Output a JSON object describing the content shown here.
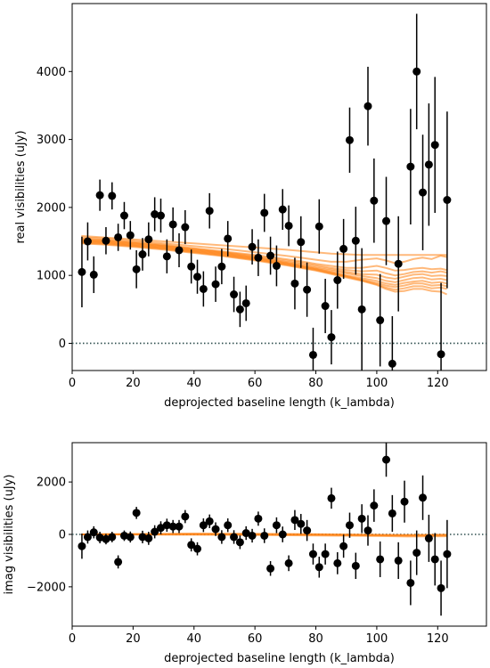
{
  "chart_data": [
    {
      "type": "scatter",
      "name": "real",
      "xlabel": "deprojected baseline length (k_lambda)",
      "ylabel": "real visibilities (uJy)",
      "xlim": [
        0,
        136
      ],
      "ylim": [
        -400,
        5000
      ],
      "xticks": [
        0,
        20,
        40,
        60,
        80,
        100,
        120
      ],
      "yticks": [
        0,
        1000,
        2000,
        3000,
        4000
      ],
      "grid": false,
      "zero_line": {
        "y": 0,
        "style": "dotted",
        "color": "#2f4f4f"
      },
      "colors": {
        "points": "#000000",
        "model": "#ff7f0e"
      },
      "points": [
        {
          "x": 3.2,
          "y": 1050,
          "err": 520
        },
        {
          "x": 5.1,
          "y": 1500,
          "err": 280
        },
        {
          "x": 7.1,
          "y": 1010,
          "err": 270
        },
        {
          "x": 9.1,
          "y": 2180,
          "err": 230
        },
        {
          "x": 11.1,
          "y": 1510,
          "err": 200
        },
        {
          "x": 13.1,
          "y": 2170,
          "err": 200
        },
        {
          "x": 15.1,
          "y": 1560,
          "err": 200
        },
        {
          "x": 17.1,
          "y": 1880,
          "err": 200
        },
        {
          "x": 19.1,
          "y": 1590,
          "err": 210
        },
        {
          "x": 21.1,
          "y": 1090,
          "err": 280
        },
        {
          "x": 23.1,
          "y": 1310,
          "err": 240
        },
        {
          "x": 25.1,
          "y": 1530,
          "err": 250
        },
        {
          "x": 27.1,
          "y": 1900,
          "err": 250
        },
        {
          "x": 29.1,
          "y": 1880,
          "err": 250
        },
        {
          "x": 31.1,
          "y": 1280,
          "err": 250
        },
        {
          "x": 33.1,
          "y": 1750,
          "err": 250
        },
        {
          "x": 35.1,
          "y": 1370,
          "err": 250
        },
        {
          "x": 37.1,
          "y": 1710,
          "err": 250
        },
        {
          "x": 39.1,
          "y": 1130,
          "err": 250
        },
        {
          "x": 41.1,
          "y": 980,
          "err": 250
        },
        {
          "x": 43.1,
          "y": 800,
          "err": 260
        },
        {
          "x": 45.1,
          "y": 1950,
          "err": 260
        },
        {
          "x": 47.1,
          "y": 870,
          "err": 260
        },
        {
          "x": 49.1,
          "y": 1130,
          "err": 260
        },
        {
          "x": 51.1,
          "y": 1540,
          "err": 260
        },
        {
          "x": 53.1,
          "y": 720,
          "err": 260
        },
        {
          "x": 55.1,
          "y": 500,
          "err": 260
        },
        {
          "x": 57.1,
          "y": 590,
          "err": 260
        },
        {
          "x": 59.1,
          "y": 1420,
          "err": 260
        },
        {
          "x": 61.1,
          "y": 1260,
          "err": 270
        },
        {
          "x": 63.1,
          "y": 1920,
          "err": 280
        },
        {
          "x": 65.1,
          "y": 1290,
          "err": 280
        },
        {
          "x": 67.1,
          "y": 1140,
          "err": 300
        },
        {
          "x": 69.1,
          "y": 1970,
          "err": 300
        },
        {
          "x": 71.1,
          "y": 1730,
          "err": 300
        },
        {
          "x": 73.1,
          "y": 880,
          "err": 380
        },
        {
          "x": 75.1,
          "y": 1490,
          "err": 380
        },
        {
          "x": 77.1,
          "y": 790,
          "err": 400
        },
        {
          "x": 79.1,
          "y": -170,
          "err": 400
        },
        {
          "x": 81.1,
          "y": 1720,
          "err": 400
        },
        {
          "x": 83.1,
          "y": 550,
          "err": 400
        },
        {
          "x": 85.1,
          "y": 90,
          "err": 400
        },
        {
          "x": 87.1,
          "y": 930,
          "err": 420
        },
        {
          "x": 89.1,
          "y": 1390,
          "err": 440
        },
        {
          "x": 91.1,
          "y": 2990,
          "err": 480
        },
        {
          "x": 93.1,
          "y": 1510,
          "err": 500
        },
        {
          "x": 95.1,
          "y": 500,
          "err": 900
        },
        {
          "x": 97.1,
          "y": 3490,
          "err": 580
        },
        {
          "x": 99.1,
          "y": 2100,
          "err": 620
        },
        {
          "x": 101.1,
          "y": 340,
          "err": 680
        },
        {
          "x": 103.1,
          "y": 1800,
          "err": 650
        },
        {
          "x": 105.1,
          "y": -300,
          "err": 700
        },
        {
          "x": 107.1,
          "y": 1170,
          "err": 700
        },
        {
          "x": 111.1,
          "y": 2600,
          "err": 850
        },
        {
          "x": 113.1,
          "y": 4000,
          "err": 850
        },
        {
          "x": 115.1,
          "y": 2220,
          "err": 850
        },
        {
          "x": 117.1,
          "y": 2630,
          "err": 900
        },
        {
          "x": 119.1,
          "y": 2920,
          "err": 1000
        },
        {
          "x": 121.1,
          "y": -160,
          "err": 1050
        },
        {
          "x": 123.1,
          "y": 2110,
          "err": 1300
        }
      ],
      "model_x": [
        3,
        10,
        20,
        30,
        40,
        50,
        60,
        70,
        75,
        80,
        85,
        90,
        95,
        100,
        103,
        106,
        109,
        112,
        115,
        118,
        121,
        123
      ],
      "model_curves": [
        [
          1580,
          1560,
          1530,
          1500,
          1470,
          1440,
          1410,
          1380,
          1360,
          1340,
          1320,
          1310,
          1300,
          1300,
          1300,
          1300,
          1300,
          1300,
          1300,
          1300,
          1300,
          1300
        ],
        [
          1560,
          1545,
          1510,
          1470,
          1430,
          1390,
          1340,
          1290,
          1260,
          1230,
          1200,
          1200,
          1230,
          1250,
          1220,
          1180,
          1200,
          1240,
          1260,
          1240,
          1290,
          1270
        ],
        [
          1540,
          1525,
          1490,
          1450,
          1400,
          1350,
          1300,
          1240,
          1210,
          1170,
          1140,
          1110,
          1110,
          1140,
          1110,
          1070,
          1080,
          1100,
          1110,
          1090,
          1100,
          1080
        ],
        [
          1530,
          1515,
          1480,
          1440,
          1390,
          1340,
          1285,
          1220,
          1190,
          1150,
          1110,
          1080,
          1060,
          1070,
          1030,
          1000,
          1020,
          1050,
          1060,
          1040,
          1060,
          1040
        ],
        [
          1520,
          1505,
          1470,
          1430,
          1380,
          1330,
          1270,
          1200,
          1170,
          1130,
          1090,
          1050,
          1020,
          1010,
          970,
          950,
          980,
          1010,
          1020,
          990,
          1000,
          990
        ],
        [
          1510,
          1495,
          1460,
          1420,
          1370,
          1320,
          1260,
          1190,
          1150,
          1110,
          1070,
          1030,
          990,
          960,
          920,
          900,
          930,
          960,
          970,
          940,
          950,
          930
        ],
        [
          1500,
          1485,
          1450,
          1410,
          1360,
          1310,
          1250,
          1180,
          1140,
          1100,
          1050,
          1000,
          960,
          920,
          880,
          860,
          890,
          910,
          920,
          890,
          900,
          880
        ],
        [
          1490,
          1475,
          1440,
          1400,
          1350,
          1300,
          1240,
          1170,
          1130,
          1090,
          1040,
          990,
          940,
          890,
          850,
          830,
          850,
          880,
          880,
          850,
          860,
          840
        ],
        [
          1480,
          1465,
          1430,
          1390,
          1340,
          1290,
          1230,
          1160,
          1120,
          1080,
          1030,
          980,
          930,
          870,
          820,
          790,
          810,
          840,
          840,
          810,
          820,
          800
        ],
        [
          1470,
          1455,
          1420,
          1380,
          1330,
          1280,
          1220,
          1150,
          1110,
          1070,
          1020,
          970,
          920,
          860,
          800,
          760,
          770,
          800,
          800,
          770,
          760,
          720
        ]
      ]
    },
    {
      "type": "scatter",
      "name": "imag",
      "xlabel": "deprojected baseline length (k_lambda)",
      "ylabel": "imag visibilities (uJy)",
      "xlim": [
        0,
        136
      ],
      "ylim": [
        -3500,
        3500
      ],
      "xticks": [
        0,
        20,
        40,
        60,
        80,
        100,
        120
      ],
      "yticks": [
        -2000,
        0,
        2000
      ],
      "grid": false,
      "zero_line": {
        "y": 0,
        "style": "dotted",
        "color": "#2f4f4f"
      },
      "colors": {
        "points": "#000000",
        "model": "#ff7f0e"
      },
      "points": [
        {
          "x": 3.2,
          "y": -450,
          "err": 480
        },
        {
          "x": 5.1,
          "y": -100,
          "err": 250
        },
        {
          "x": 7.1,
          "y": 80,
          "err": 230
        },
        {
          "x": 9.1,
          "y": -120,
          "err": 220
        },
        {
          "x": 11.1,
          "y": -180,
          "err": 200
        },
        {
          "x": 13.1,
          "y": -100,
          "err": 200
        },
        {
          "x": 15.1,
          "y": -1050,
          "err": 250
        },
        {
          "x": 17.1,
          "y": -50,
          "err": 200
        },
        {
          "x": 19.1,
          "y": -100,
          "err": 210
        },
        {
          "x": 21.1,
          "y": 820,
          "err": 230
        },
        {
          "x": 23.1,
          "y": -100,
          "err": 240
        },
        {
          "x": 25.1,
          "y": -150,
          "err": 250
        },
        {
          "x": 27.1,
          "y": 100,
          "err": 250
        },
        {
          "x": 29.1,
          "y": 250,
          "err": 250
        },
        {
          "x": 31.1,
          "y": 350,
          "err": 250
        },
        {
          "x": 33.1,
          "y": 300,
          "err": 250
        },
        {
          "x": 35.1,
          "y": 300,
          "err": 250
        },
        {
          "x": 37.1,
          "y": 680,
          "err": 250
        },
        {
          "x": 39.1,
          "y": -400,
          "err": 250
        },
        {
          "x": 41.1,
          "y": -550,
          "err": 250
        },
        {
          "x": 43.1,
          "y": 350,
          "err": 260
        },
        {
          "x": 45.1,
          "y": 500,
          "err": 260
        },
        {
          "x": 47.1,
          "y": 200,
          "err": 260
        },
        {
          "x": 49.1,
          "y": -100,
          "err": 260
        },
        {
          "x": 51.1,
          "y": 350,
          "err": 260
        },
        {
          "x": 53.1,
          "y": -100,
          "err": 260
        },
        {
          "x": 55.1,
          "y": -300,
          "err": 260
        },
        {
          "x": 57.1,
          "y": 50,
          "err": 260
        },
        {
          "x": 59.1,
          "y": -50,
          "err": 260
        },
        {
          "x": 61.1,
          "y": 600,
          "err": 270
        },
        {
          "x": 63.1,
          "y": -50,
          "err": 280
        },
        {
          "x": 65.1,
          "y": -1300,
          "err": 280
        },
        {
          "x": 67.1,
          "y": 350,
          "err": 300
        },
        {
          "x": 69.1,
          "y": 0,
          "err": 300
        },
        {
          "x": 71.1,
          "y": -1100,
          "err": 300
        },
        {
          "x": 73.1,
          "y": 550,
          "err": 380
        },
        {
          "x": 75.1,
          "y": 400,
          "err": 380
        },
        {
          "x": 77.1,
          "y": 150,
          "err": 400
        },
        {
          "x": 79.1,
          "y": -750,
          "err": 400
        },
        {
          "x": 81.1,
          "y": -1250,
          "err": 400
        },
        {
          "x": 83.1,
          "y": -750,
          "err": 400
        },
        {
          "x": 85.1,
          "y": 1380,
          "err": 400
        },
        {
          "x": 87.1,
          "y": -1100,
          "err": 420
        },
        {
          "x": 89.1,
          "y": -450,
          "err": 440
        },
        {
          "x": 91.1,
          "y": 350,
          "err": 480
        },
        {
          "x": 93.1,
          "y": -1200,
          "err": 500
        },
        {
          "x": 95.1,
          "y": 600,
          "err": 550
        },
        {
          "x": 97.1,
          "y": 150,
          "err": 580
        },
        {
          "x": 99.1,
          "y": 1100,
          "err": 620
        },
        {
          "x": 101.1,
          "y": -950,
          "err": 680
        },
        {
          "x": 103.1,
          "y": 2850,
          "err": 650
        },
        {
          "x": 105.1,
          "y": 800,
          "err": 700
        },
        {
          "x": 107.1,
          "y": -1000,
          "err": 700
        },
        {
          "x": 109.1,
          "y": 1250,
          "err": 800
        },
        {
          "x": 111.1,
          "y": -1850,
          "err": 850
        },
        {
          "x": 113.1,
          "y": -700,
          "err": 850
        },
        {
          "x": 115.1,
          "y": 1400,
          "err": 850
        },
        {
          "x": 117.1,
          "y": -150,
          "err": 900
        },
        {
          "x": 119.1,
          "y": -950,
          "err": 1000
        },
        {
          "x": 121.1,
          "y": -2050,
          "err": 1050
        },
        {
          "x": 123.1,
          "y": -750,
          "err": 1300
        }
      ],
      "model_x": [
        3,
        20,
        40,
        60,
        80,
        100,
        110,
        123
      ],
      "model_curves": [
        [
          0,
          10,
          20,
          15,
          0,
          -30,
          -50,
          -40
        ],
        [
          0,
          -10,
          -15,
          -20,
          -40,
          -60,
          -80,
          -70
        ],
        [
          0,
          5,
          0,
          -10,
          -20,
          -40,
          -30,
          -20
        ],
        [
          0,
          15,
          30,
          20,
          10,
          -10,
          -20,
          -10
        ]
      ]
    }
  ]
}
